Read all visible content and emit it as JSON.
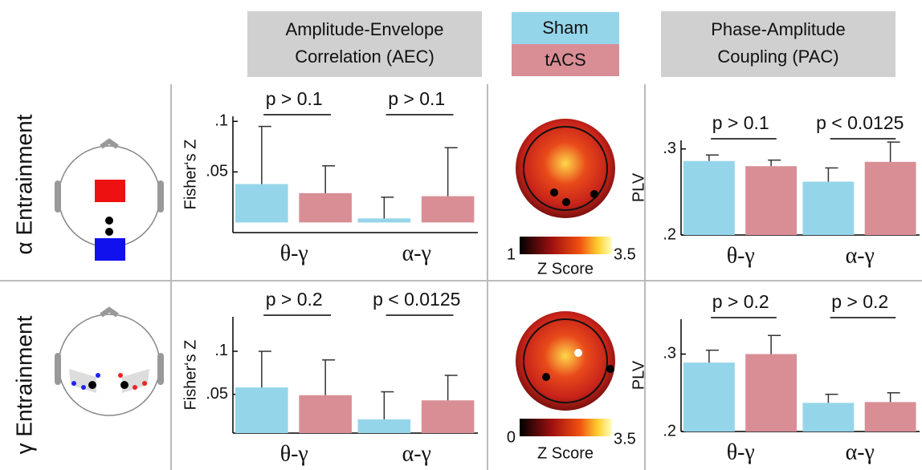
{
  "headers": {
    "aec": [
      "Amplitude-Envelope",
      "Correlation (AEC)"
    ],
    "pac": [
      "Phase-Amplitude",
      "Coupling (PAC)"
    ]
  },
  "row_labels": [
    "α Entrainment",
    "γ Entrainment"
  ],
  "colorbars": [
    {
      "min": 1,
      "max": 3.5,
      "label": "Z Score"
    },
    {
      "min": 0,
      "max": 3.5,
      "label": "Z Score"
    }
  ],
  "chart_data": [
    {
      "type": "bar",
      "ylabel": "Fisher‘s Z",
      "categories": [
        "θ-γ",
        "α-γ"
      ],
      "annotations": [
        "p > 0.1",
        "p > 0.1"
      ],
      "ylim": [
        -0.01,
        0.105
      ],
      "yticks": [
        {
          "value": 0.05,
          "label": ".05"
        },
        {
          "value": 0.1,
          "label": ".1"
        }
      ],
      "series": [
        {
          "name": "Sham",
          "color": "#95d5ea",
          "values": [
            0.038,
            0.004
          ],
          "errors": [
            0.057,
            0.021
          ]
        },
        {
          "name": "tACS",
          "color": "#d98e96",
          "values": [
            0.029,
            0.026
          ],
          "errors": [
            0.027,
            0.048
          ]
        }
      ]
    },
    {
      "type": "bar",
      "ylabel": "PLV",
      "categories": [
        "θ-γ",
        "α-γ"
      ],
      "annotations": [
        "p > 0.1",
        "p < 0.0125"
      ],
      "ylim": [
        0.2,
        0.31
      ],
      "yticks": [
        {
          "value": 0.2,
          "label": ".2"
        },
        {
          "value": 0.3,
          "label": ".3"
        }
      ],
      "series": [
        {
          "name": "Sham",
          "color": "#95d5ea",
          "values": [
            0.286,
            0.262
          ],
          "errors": [
            0.007,
            0.016
          ]
        },
        {
          "name": "tACS",
          "color": "#d98e96",
          "values": [
            0.28,
            0.285
          ],
          "errors": [
            0.007,
            0.023
          ]
        }
      ]
    },
    {
      "type": "bar",
      "ylabel": "Fisher‘s Z",
      "categories": [
        "θ-γ",
        "α-γ"
      ],
      "annotations": [
        "p > 0.2",
        "p < 0.0125"
      ],
      "ylim": [
        0.005,
        0.14
      ],
      "yticks": [
        {
          "value": 0.05,
          "label": ".05"
        },
        {
          "value": 0.1,
          "label": ".1"
        }
      ],
      "series": [
        {
          "name": "Sham",
          "color": "#95d5ea",
          "values": [
            0.058,
            0.021
          ],
          "errors": [
            0.042,
            0.032
          ]
        },
        {
          "name": "tACS",
          "color": "#d98e96",
          "values": [
            0.049,
            0.043
          ],
          "errors": [
            0.041,
            0.029
          ]
        }
      ]
    },
    {
      "type": "bar",
      "ylabel": "PLV",
      "categories": [
        "θ-γ",
        "α-γ"
      ],
      "annotations": [
        "p > 0.2",
        "p > 0.2"
      ],
      "ylim": [
        0.2,
        0.345
      ],
      "yticks": [
        {
          "value": 0.2,
          "label": ".2"
        },
        {
          "value": 0.3,
          "label": ".3"
        }
      ],
      "series": [
        {
          "name": "Sham",
          "color": "#95d5ea",
          "values": [
            0.289,
            0.237
          ],
          "errors": [
            0.016,
            0.011
          ]
        },
        {
          "name": "tACS",
          "color": "#d98e96",
          "values": [
            0.3,
            0.238
          ],
          "errors": [
            0.024,
            0.012
          ]
        }
      ]
    }
  ]
}
